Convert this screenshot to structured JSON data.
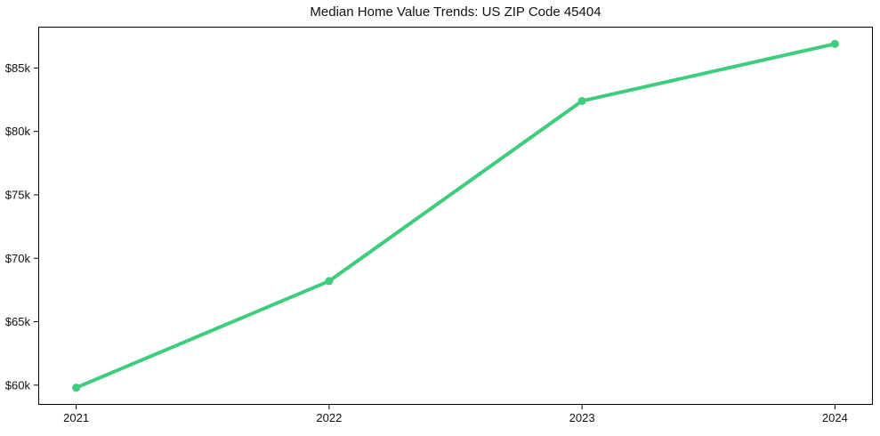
{
  "chart_data": {
    "type": "line",
    "title": "Median Home Value Trends: US ZIP Code 45404",
    "xlabel": "",
    "ylabel": "",
    "x": [
      2021,
      2022,
      2023,
      2024
    ],
    "x_tick_labels": [
      "2021",
      "2022",
      "2023",
      "2024"
    ],
    "values": [
      59800,
      68200,
      82400,
      86900
    ],
    "y_ticks": [
      60000,
      65000,
      70000,
      75000,
      80000,
      85000
    ],
    "y_tick_labels": [
      "$60k",
      "$65k",
      "$70k",
      "$75k",
      "$80k",
      "$85k"
    ],
    "xlim": [
      2020.85,
      2024.15
    ],
    "ylim": [
      58445,
      88255
    ],
    "grid": false,
    "legend": "none",
    "marker": "circle"
  },
  "colors": {
    "line": "#3ecc7d",
    "axis": "#000000",
    "text": "#111111",
    "background": "#ffffff"
  }
}
